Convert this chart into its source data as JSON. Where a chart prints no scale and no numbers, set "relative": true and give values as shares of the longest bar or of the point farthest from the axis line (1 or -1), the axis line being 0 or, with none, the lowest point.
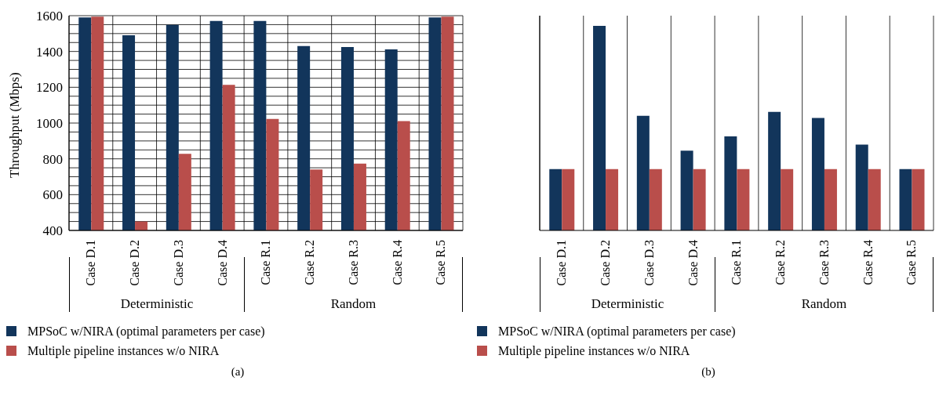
{
  "chart_data": [
    {
      "type": "bar",
      "title": "(a)",
      "ylabel": "Throughput (Mbps)",
      "categories": [
        "Case D.1",
        "Case D.2",
        "Case D.3",
        "Case D.4",
        "Case R.1",
        "Case R.2",
        "Case R.3",
        "Case R.4",
        "Case R.5"
      ],
      "series": [
        {
          "name": "MPSoC w/NIRA (optimal parameters per case)",
          "color": "#12355b",
          "values": [
            1590,
            1490,
            1548,
            1570,
            1570,
            1430,
            1425,
            1412,
            1590
          ]
        },
        {
          "name": "Multiple pipeline instances w/o NIRA",
          "color": "#b94e4b",
          "values": [
            1595,
            450,
            828,
            1214,
            1023,
            740,
            773,
            1011,
            1595
          ]
        }
      ],
      "ylim": [
        400,
        1600
      ],
      "yticks": [
        400,
        600,
        800,
        1000,
        1200,
        1400,
        1600
      ],
      "grid": true,
      "legend": "bottom",
      "annotations": [
        "Deterministic",
        "Random"
      ]
    },
    {
      "type": "bar",
      "title": "(b)",
      "relative": true,
      "categories": [
        "Case D.1",
        "Case D.2",
        "Case D.3",
        "Case D.4",
        "Case R.1",
        "Case R.2",
        "Case R.3",
        "Case R.4",
        "Case R.5"
      ],
      "series": [
        {
          "name": "MPSoC w/NIRA (optimal parameters per case)",
          "color": "#12355b",
          "values": [
            0.3,
            1,
            0.56,
            0.39,
            0.46,
            0.58,
            0.55,
            0.42,
            0.3
          ]
        },
        {
          "name": "Multiple pipeline instances w/o NIRA",
          "color": "#b94e4b",
          "values": [
            0.3,
            0.3,
            0.3,
            0.3,
            0.3,
            0.3,
            0.3,
            0.3,
            0.3
          ]
        }
      ],
      "grid": true,
      "legend": "bottom",
      "annotations": [
        "Deterministic",
        "Random"
      ]
    }
  ]
}
